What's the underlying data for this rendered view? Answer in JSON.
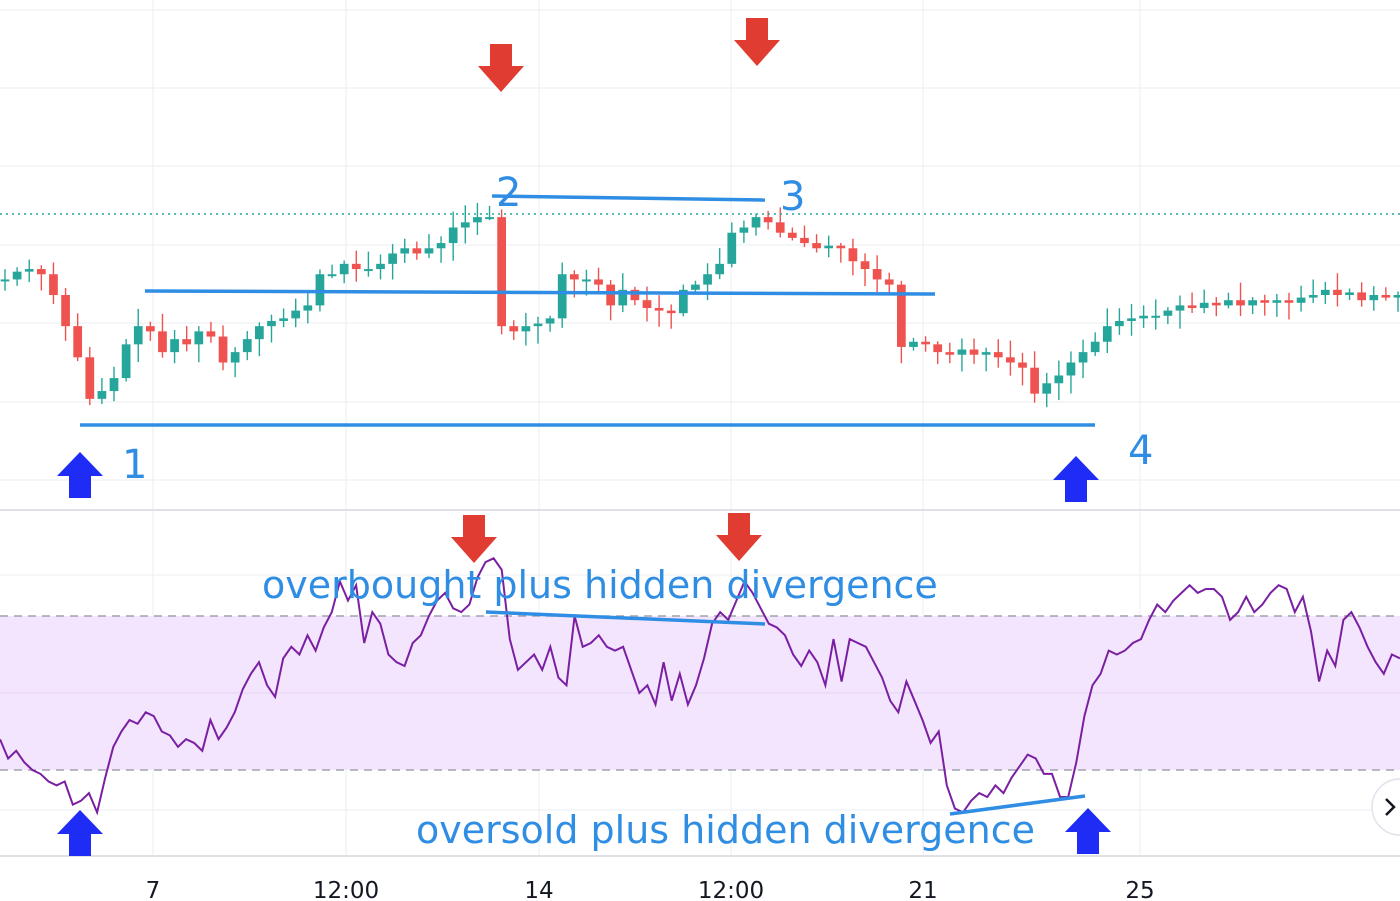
{
  "chart_data": [
    {
      "type": "candlestick",
      "title": "",
      "up_color": "#26a69a",
      "down_color": "#ef5350",
      "last_price_line": true,
      "x_ticks": [
        "7",
        "12:00",
        "14",
        "12:00",
        "21",
        "25"
      ],
      "close_path": [
        58,
        61,
        62,
        60,
        52,
        40,
        28,
        12,
        15,
        20,
        33,
        40,
        38,
        30,
        35,
        33,
        38,
        36,
        26,
        30,
        35,
        40,
        42,
        43,
        46,
        48,
        60,
        60,
        64,
        62,
        62,
        64,
        68,
        70,
        68,
        70,
        72,
        78,
        80,
        82,
        82,
        40,
        38,
        40,
        41,
        43,
        60,
        58,
        58,
        56,
        48,
        54,
        50,
        47,
        46,
        45,
        54,
        56,
        60,
        64,
        76,
        78,
        82,
        80,
        76,
        74,
        72,
        70,
        71,
        70,
        65,
        62,
        58,
        56,
        32,
        34,
        33,
        30,
        29,
        31,
        29,
        30,
        28,
        26,
        24,
        14,
        18,
        21,
        26,
        30,
        34,
        40,
        42,
        43,
        44,
        44,
        46,
        48,
        47,
        49,
        48,
        50,
        48,
        50,
        49,
        50,
        49,
        51,
        52,
        54,
        52,
        53,
        50,
        52,
        51,
        52
      ],
      "markers": [
        {
          "type": "buy",
          "label": "1"
        },
        {
          "type": "sell",
          "label": "2"
        },
        {
          "type": "sell",
          "label": "3"
        },
        {
          "type": "buy",
          "label": "4"
        }
      ],
      "annotations": [
        "1",
        "2",
        "3",
        "4"
      ]
    },
    {
      "type": "line",
      "indicator": "RSI",
      "overbought": 70,
      "oversold": 30,
      "ylim": [
        0,
        100
      ],
      "band_color": "#f3e5fd",
      "line_color": "#7b1fa2",
      "values": [
        38,
        33,
        35,
        32,
        30,
        29,
        27,
        26,
        27,
        21,
        22,
        24,
        19,
        28,
        36,
        40,
        43,
        42,
        45,
        44,
        40,
        39,
        36,
        38,
        37,
        35,
        43,
        38,
        41,
        45,
        51,
        55,
        58,
        52,
        49,
        59,
        62,
        60,
        65,
        61,
        67,
        71,
        79,
        74,
        78,
        63,
        71,
        68,
        60,
        58,
        57,
        63,
        65,
        70,
        74,
        76,
        72,
        71,
        73,
        80,
        84,
        85,
        82,
        64,
        56,
        58,
        60,
        56,
        62,
        54,
        52,
        70,
        62,
        63,
        65,
        62,
        61,
        62,
        56,
        50,
        52,
        47,
        58,
        48,
        55,
        47,
        52,
        59,
        68,
        71,
        69,
        74,
        79,
        76,
        72,
        68,
        67,
        65,
        60,
        57,
        61,
        58,
        52,
        64,
        53,
        64,
        63,
        62,
        58,
        54,
        48,
        45,
        53,
        48,
        43,
        37,
        40,
        26,
        20,
        19,
        22,
        24,
        23,
        26,
        24,
        28,
        31,
        34,
        33,
        29,
        29,
        23,
        23,
        32,
        44,
        52,
        55,
        61,
        60,
        61,
        63,
        64,
        69,
        73,
        71,
        74,
        76,
        78,
        76,
        77,
        77,
        75,
        69,
        71,
        75,
        71,
        73,
        76,
        78,
        77,
        71,
        75,
        66,
        53,
        61,
        57,
        69,
        71,
        67,
        62,
        58,
        55,
        60,
        59
      ],
      "annotations": [
        "overbought plus hidden divergence",
        "oversold plus hidden divergence"
      ]
    }
  ]
}
